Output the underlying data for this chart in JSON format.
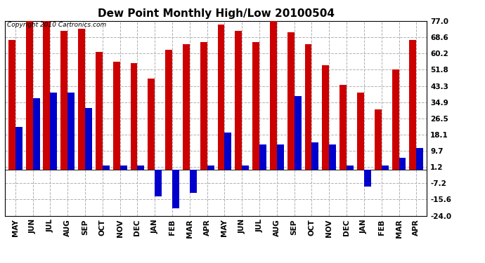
{
  "title": "Dew Point Monthly High/Low 20100504",
  "copyright": "Copyright 2010 Cartronics.com",
  "months": [
    "MAY",
    "JUN",
    "JUL",
    "AUG",
    "SEP",
    "OCT",
    "NOV",
    "DEC",
    "JAN",
    "FEB",
    "MAR",
    "APR",
    "MAY",
    "JUN",
    "JUL",
    "AUG",
    "SEP",
    "OCT",
    "NOV",
    "DEC",
    "JAN",
    "FEB",
    "MAR",
    "APR"
  ],
  "highs": [
    67,
    77,
    77,
    72,
    73,
    61,
    56,
    55,
    47,
    62,
    65,
    66,
    75,
    72,
    66,
    77,
    71,
    65,
    54,
    44,
    40,
    31,
    52,
    67
  ],
  "lows": [
    22,
    37,
    40,
    40,
    32,
    2,
    2,
    2,
    -14,
    -20,
    -12,
    2,
    19,
    2,
    13,
    13,
    38,
    14,
    13,
    2,
    -9,
    2,
    6,
    11
  ],
  "bar_color_high": "#cc0000",
  "bar_color_low": "#0000cc",
  "background_color": "#ffffff",
  "grid_color": "#b0b0b0",
  "yticks": [
    77.0,
    68.6,
    60.2,
    51.8,
    43.3,
    34.9,
    26.5,
    18.1,
    9.7,
    1.2,
    -7.2,
    -15.6,
    -24.0
  ],
  "ymin": -24.0,
  "ymax": 77.0,
  "title_fontsize": 11,
  "copyright_fontsize": 6.5,
  "tick_fontsize": 7.5,
  "bar_width": 0.4
}
